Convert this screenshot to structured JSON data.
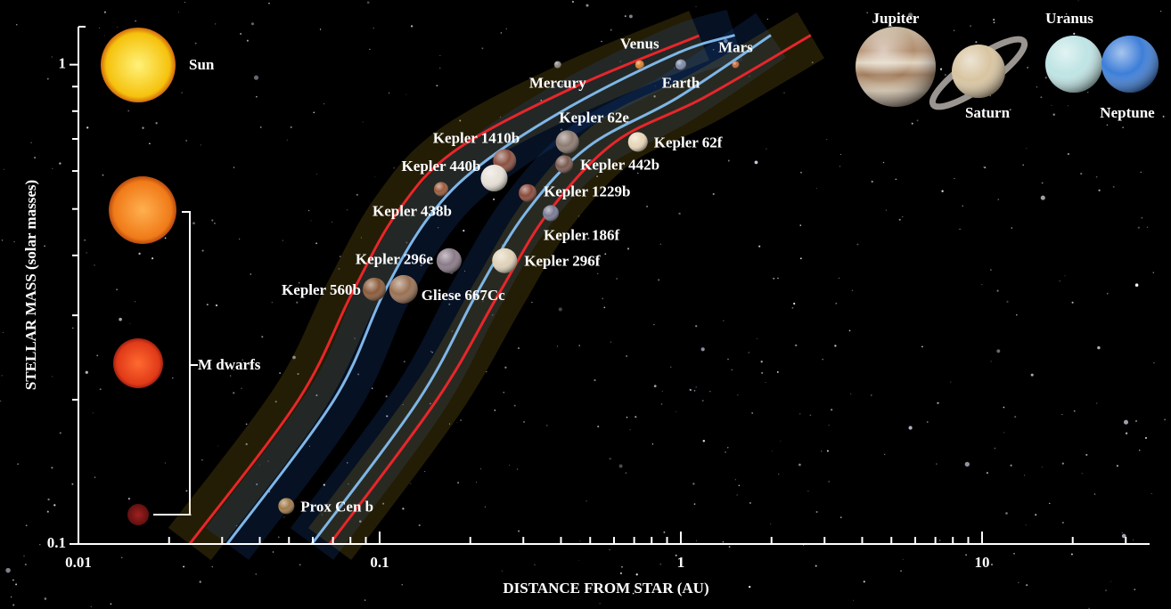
{
  "chart_data": {
    "type": "scatter",
    "x_label": "DISTANCE FROM STAR (AU)",
    "y_label": "STELLAR MASS (solar masses)",
    "log_x": true,
    "log_y": true,
    "xlim": [
      0.01,
      36
    ],
    "ylim": [
      0.1,
      1.2
    ],
    "xticks": [
      0.01,
      0.1,
      1,
      10
    ],
    "yticks": [
      0.1,
      1
    ],
    "xminorticks": [
      0.02,
      0.03,
      0.04,
      0.05,
      0.06,
      0.07,
      0.08,
      0.09,
      0.2,
      0.3,
      0.4,
      0.5,
      0.6,
      0.7,
      0.8,
      0.9,
      2,
      3,
      4,
      5,
      6,
      7,
      8,
      9,
      20,
      30
    ],
    "yminorticks": [
      0.2,
      0.3,
      0.4,
      0.5,
      0.6,
      0.7,
      0.8,
      0.9
    ],
    "labels": [
      "Mercury",
      "Venus",
      "Earth",
      "Mars",
      "Kepler 62e",
      "Kepler 62f",
      "Kepler 1410b",
      "Kepler 442b",
      "Kepler 440b",
      "Kepler 438b",
      "Kepler 1229b",
      "Kepler 186f",
      "Kepler 296e",
      "Kepler 296f",
      "Kepler 560b",
      "Gliese 667Cc",
      "Prox Cen b"
    ],
    "x": [
      0.39,
      0.73,
      1.0,
      1.52,
      0.42,
      0.72,
      0.26,
      0.41,
      0.24,
      0.16,
      0.31,
      0.37,
      0.17,
      0.26,
      0.096,
      0.12,
      0.049
    ],
    "values": [
      1,
      1,
      1,
      1,
      0.69,
      0.69,
      0.63,
      0.62,
      0.58,
      0.55,
      0.54,
      0.49,
      0.39,
      0.39,
      0.34,
      0.34,
      0.12
    ],
    "colors": [
      "#8a8580",
      "#d9822b",
      "#7d8aa8",
      "#c2693a",
      "#8c7a70",
      "#e8d6b8",
      "#8a5040",
      "#7a5a50",
      "#e6e0d6",
      "#9a5a3a",
      "#8a4a3a",
      "#7a7a95",
      "#8a7a88",
      "#e0d2b8",
      "#8a5a3a",
      "#9a7052",
      "#a07a48"
    ],
    "zone_lines": [
      {
        "color": "#e8262a",
        "x": [
          0.0234,
          0.0538,
          0.0809,
          0.114,
          0.177,
          0.43,
          1.15
        ],
        "values": [
          0.1,
          0.2,
          0.333,
          0.49,
          0.66,
          0.89,
          1.15
        ]
      },
      {
        "color": "#7fb6e6",
        "x": [
          0.0312,
          0.0706,
          0.103,
          0.145,
          0.217,
          0.43,
          0.973,
          1.51
        ],
        "values": [
          0.1,
          0.2,
          0.333,
          0.479,
          0.619,
          0.818,
          1.057,
          1.152
        ]
      },
      {
        "color": "#7fb6e6",
        "x": [
          0.0596,
          0.135,
          0.21,
          0.305,
          0.492,
          0.973,
          1.99
        ],
        "values": [
          0.1,
          0.2,
          0.333,
          0.49,
          0.674,
          0.853,
          1.152
        ]
      },
      {
        "color": "#e8262a",
        "x": [
          0.0683,
          0.155,
          0.249,
          0.362,
          0.604,
          1.19,
          2.7
        ],
        "values": [
          0.1,
          0.2,
          0.333,
          0.49,
          0.689,
          0.853,
          1.152
        ]
      }
    ],
    "star_labels": [
      "Sun",
      "M dwarfs"
    ],
    "giants": [
      "Jupiter",
      "Saturn",
      "Uranus",
      "Neptune"
    ]
  }
}
